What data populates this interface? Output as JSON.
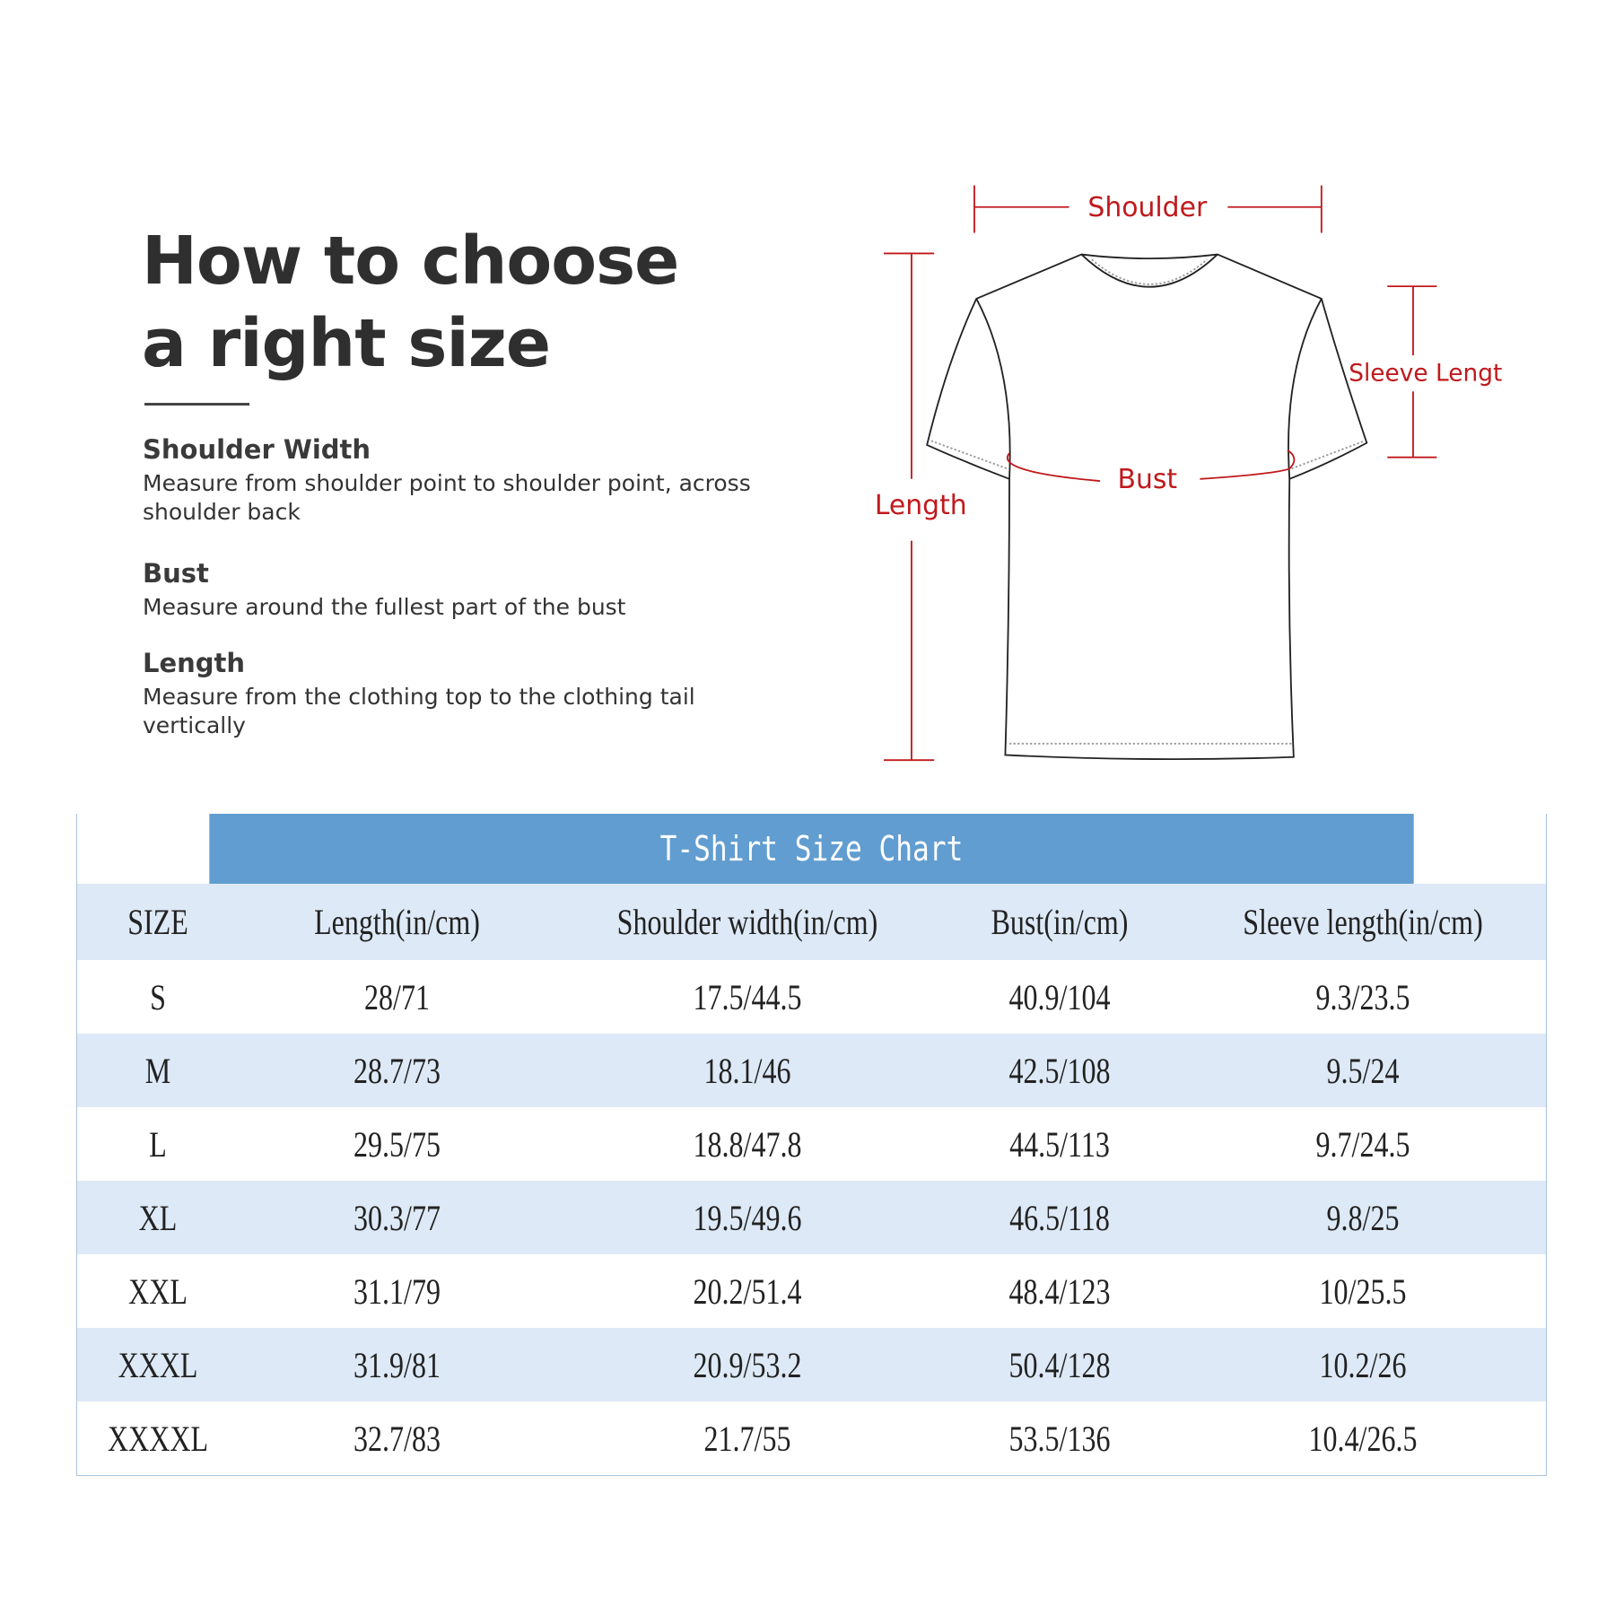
{
  "heading": {
    "line1": "How to choose",
    "line2": "a right size"
  },
  "guide": [
    {
      "title": "Shoulder Width",
      "text": "Measure from shoulder point to shoulder point, across shoulder back"
    },
    {
      "title": "Bust",
      "text": "Measure around the fullest part of the bust"
    },
    {
      "title": "Length",
      "text": "Measure from the clothing top to the clothing tail vertically"
    }
  ],
  "diagram": {
    "shoulder": "Shoulder",
    "length": "Length",
    "bust": "Bust",
    "sleeve": "Sleeve Lengt",
    "accent_color": "#c0191c"
  },
  "table": {
    "title": "T-Shirt Size Chart",
    "header_color": "#619dd0",
    "stripe_color": "#dde9f6",
    "columns": [
      "SIZE",
      "Length(in/cm)",
      "Shoulder width(in/cm)",
      "Bust(in/cm)",
      "Sleeve length(in/cm)"
    ],
    "rows": [
      [
        "S",
        "28/71",
        "17.5/44.5",
        "40.9/104",
        "9.3/23.5"
      ],
      [
        "M",
        "28.7/73",
        "18.1/46",
        "42.5/108",
        "9.5/24"
      ],
      [
        "L",
        "29.5/75",
        "18.8/47.8",
        "44.5/113",
        "9.7/24.5"
      ],
      [
        "XL",
        "30.3/77",
        "19.5/49.6",
        "46.5/118",
        "9.8/25"
      ],
      [
        "XXL",
        "31.1/79",
        "20.2/51.4",
        "48.4/123",
        "10/25.5"
      ],
      [
        "XXXL",
        "31.9/81",
        "20.9/53.2",
        "50.4/128",
        "10.2/26"
      ],
      [
        "XXXXL",
        "32.7/83",
        "21.7/55",
        "53.5/136",
        "10.4/26.5"
      ]
    ]
  }
}
